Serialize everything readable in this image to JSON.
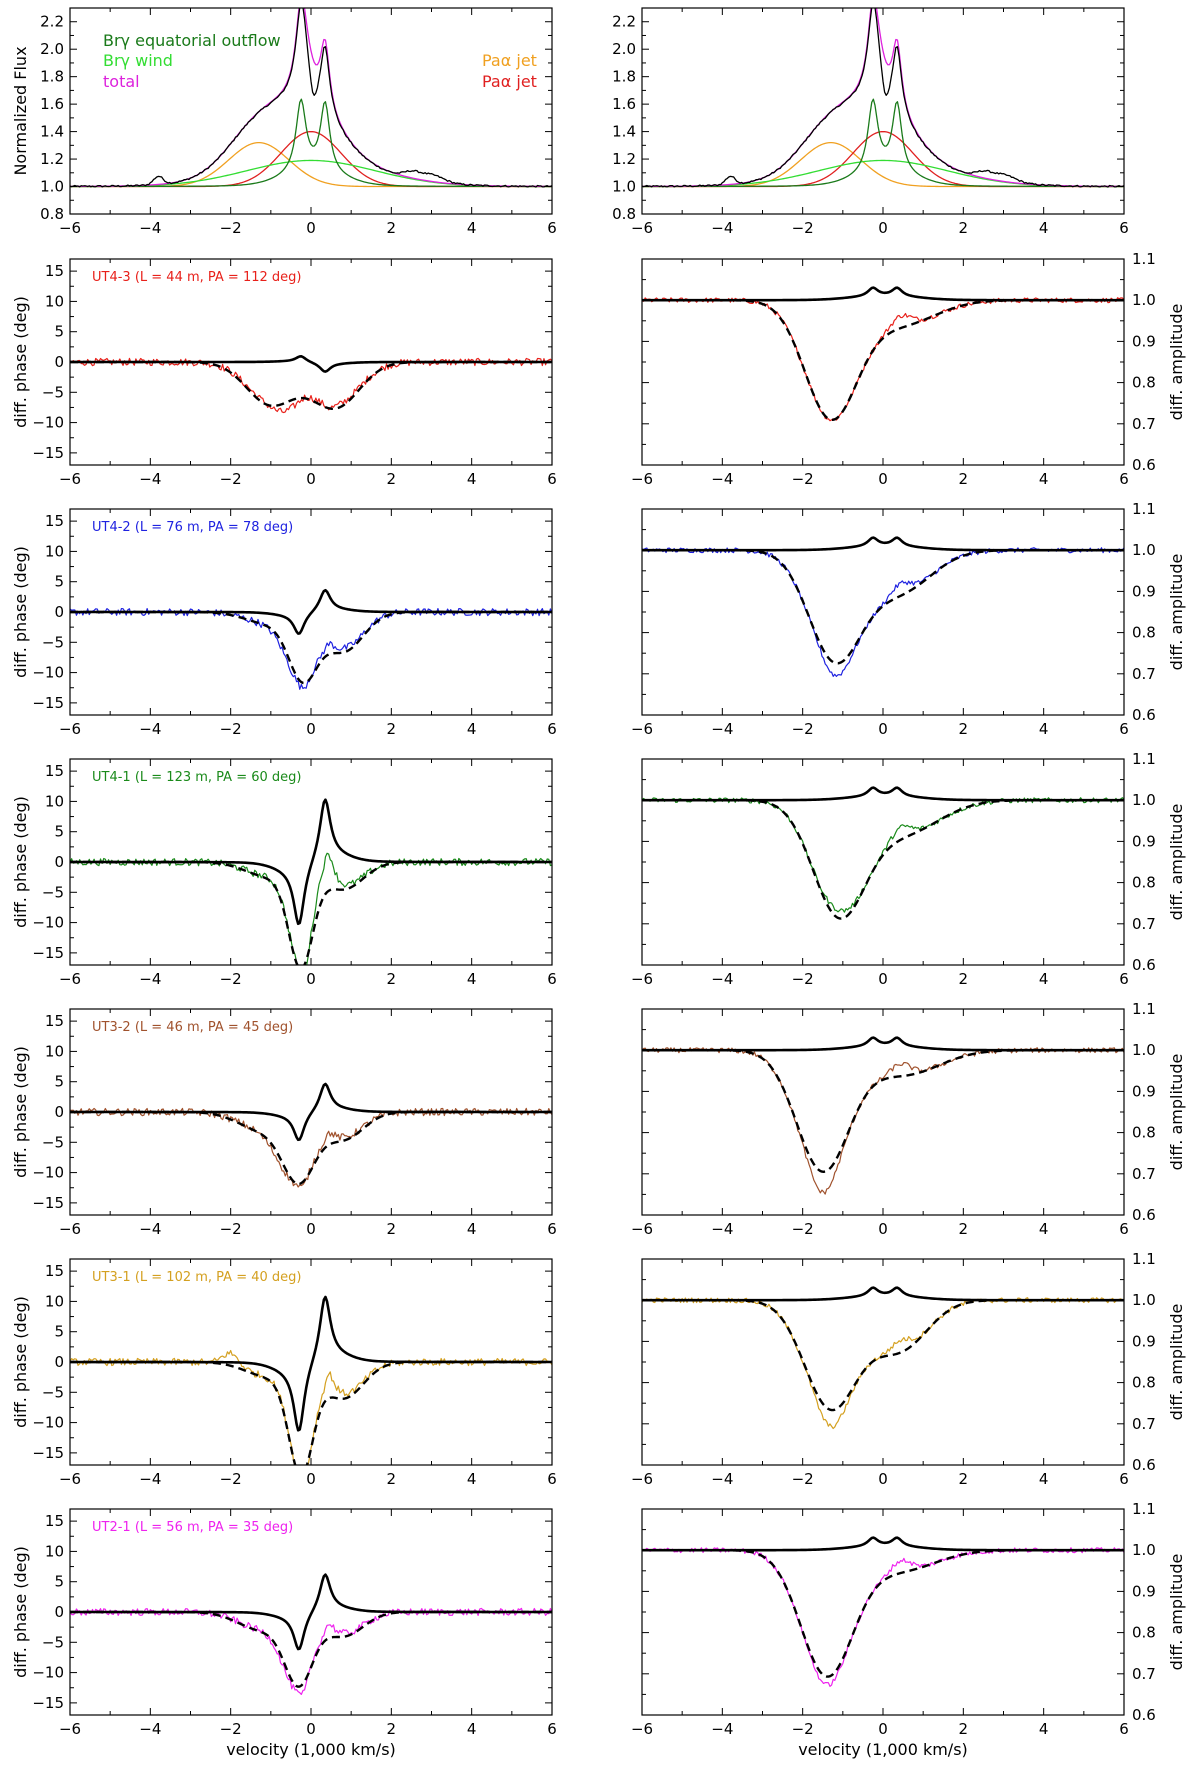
{
  "figure_axes": {
    "xlabel": "velocity (1,000 km/s)",
    "phase_ylabel": "diff. phase (deg)",
    "amp_ylabel": "diff. amplitude",
    "flux_ylabel": "Normalized Flux"
  },
  "chart_data": {
    "type": "line",
    "x_range": [
      -6,
      6
    ],
    "x_ticks": [
      -6,
      -4,
      -2,
      0,
      2,
      4,
      6
    ],
    "flux_panel": {
      "ylabel": "Normalized Flux",
      "ylim": [
        0.8,
        2.3
      ],
      "yticks": [
        0.8,
        1.0,
        1.2,
        1.4,
        1.6,
        1.8,
        2.0,
        2.2
      ],
      "legend": [
        {
          "label": "Brγ equatorial outflow",
          "color": "#1a7a1a"
        },
        {
          "label": "Brγ wind",
          "color": "#33dd33"
        },
        {
          "label": "total",
          "color": "#dd22dd"
        },
        {
          "label": "Paα jet",
          "color": "#f0a020"
        },
        {
          "label": "Paα jet",
          "color": "#e02020"
        }
      ],
      "components": {
        "eq_outflow": {
          "peak_positions": [
            -0.25,
            0.35
          ],
          "peak_value": 1.62
        },
        "wind": {
          "center": 0.0,
          "peak_value": 1.19,
          "width": 1.6
        },
        "jet_blue": {
          "center": -1.3,
          "peak_value": 1.32,
          "width": 0.75
        },
        "jet_red": {
          "center": 0.0,
          "peak_value": 1.4,
          "width": 0.75
        },
        "total_peak": 2.26
      }
    },
    "baselines": [
      {
        "label": "UT4-3 (L = 44 m, PA = 112 deg)",
        "color": "#e8201a",
        "phase": {
          "model_peaks": [
            [
              -0.25,
              1.0
            ],
            [
              0.35,
              -1.5
            ]
          ],
          "dashed": [
            [
              -1.0,
              -7.0,
              0.6
            ],
            [
              0.6,
              -7.5,
              0.6
            ]
          ],
          "obs_extra": [
            [
              -0.6,
              -2.0,
              0.3
            ]
          ]
        },
        "amp": {
          "dip_center": -1.3,
          "dip_min": 0.72,
          "shoulder": [
            0.4,
            0.06,
            0.9
          ],
          "obs_offset": 0.0
        }
      },
      {
        "label": "UT4-2 (L = 76 m, PA = 78 deg)",
        "color": "#1f22e0",
        "phase": {
          "model_peaks": [
            [
              -0.3,
              -3.5
            ],
            [
              0.35,
              3.5
            ]
          ],
          "dashed": [
            [
              -0.2,
              -10.0,
              0.35
            ],
            [
              0.8,
              -6.5,
              0.5
            ],
            [
              -1.0,
              -2.0,
              0.6
            ]
          ],
          "obs_extra": [
            [
              -0.6,
              -1.5,
              0.3
            ]
          ]
        },
        "amp": {
          "dip_center": -1.2,
          "dip_min": 0.74,
          "shoulder": [
            0.4,
            0.1,
            0.8
          ],
          "obs_offset": -0.03
        }
      },
      {
        "label": "UT4-1 (L = 123 m, PA = 60 deg)",
        "color": "#1a8a1a",
        "phase": {
          "model_peaks": [
            [
              -0.3,
              -10.0
            ],
            [
              0.35,
              10.0
            ]
          ],
          "dashed": [
            [
              -0.25,
              -16.0,
              0.3
            ],
            [
              0.8,
              -4.5,
              0.5
            ],
            [
              -1.0,
              -2.5,
              0.6
            ]
          ],
          "obs_extra": [
            [
              0.3,
              3.0,
              0.2
            ]
          ]
        },
        "amp": {
          "dip_center": -1.1,
          "dip_min": 0.73,
          "shoulder": [
            0.5,
            0.08,
            0.9
          ],
          "obs_offset": 0.02
        }
      },
      {
        "label": "UT3-2 (L = 46 m, PA = 45 deg)",
        "color": "#a0522d",
        "phase": {
          "model_peaks": [
            [
              -0.3,
              -4.5
            ],
            [
              0.35,
              4.5
            ]
          ],
          "dashed": [
            [
              -0.3,
              -10.5,
              0.4
            ],
            [
              0.8,
              -4.5,
              0.5
            ],
            [
              -1.2,
              -3.0,
              0.6
            ]
          ],
          "obs_extra": [
            [
              -0.8,
              -1.5,
              0.3
            ]
          ]
        },
        "amp": {
          "dip_center": -1.5,
          "dip_min": 0.71,
          "shoulder": [
            0.5,
            0.06,
            0.9
          ],
          "obs_offset": -0.05
        }
      },
      {
        "label": "UT3-1 (L = 102 m, PA = 40 deg)",
        "color": "#d4a020",
        "phase": {
          "model_peaks": [
            [
              -0.3,
              -11.0
            ],
            [
              0.35,
              10.5
            ]
          ],
          "dashed": [
            [
              -0.25,
              -17.0,
              0.3
            ],
            [
              0.8,
              -6.0,
              0.5
            ],
            [
              -1.0,
              -2.5,
              0.6
            ]
          ],
          "obs_extra": [
            [
              -2.0,
              2.0,
              0.2
            ]
          ]
        },
        "amp": {
          "dip_center": -1.3,
          "dip_min": 0.74,
          "shoulder": [
            0.4,
            0.12,
            0.7
          ],
          "obs_offset": -0.04
        }
      },
      {
        "label": "UT2-1 (L = 56 m, PA = 35 deg)",
        "color": "#ee22ee",
        "phase": {
          "model_peaks": [
            [
              -0.3,
              -6.0
            ],
            [
              0.35,
              6.0
            ]
          ],
          "dashed": [
            [
              -0.3,
              -11.0,
              0.35
            ],
            [
              0.8,
              -4.0,
              0.5
            ],
            [
              -1.2,
              -3.0,
              0.6
            ]
          ],
          "obs_extra": [
            [
              -0.6,
              -1.5,
              0.3
            ]
          ]
        },
        "amp": {
          "dip_center": -1.4,
          "dip_min": 0.7,
          "shoulder": [
            0.4,
            0.05,
            0.9
          ],
          "obs_offset": -0.02
        }
      }
    ],
    "phase_ylim": [
      -17,
      17
    ],
    "phase_yticks": [
      -15,
      -10,
      -5,
      0,
      5,
      10,
      15
    ],
    "amp_ylim": [
      0.6,
      1.1
    ],
    "amp_yticks": [
      0.6,
      0.7,
      0.8,
      0.9,
      1.0,
      1.1
    ]
  }
}
